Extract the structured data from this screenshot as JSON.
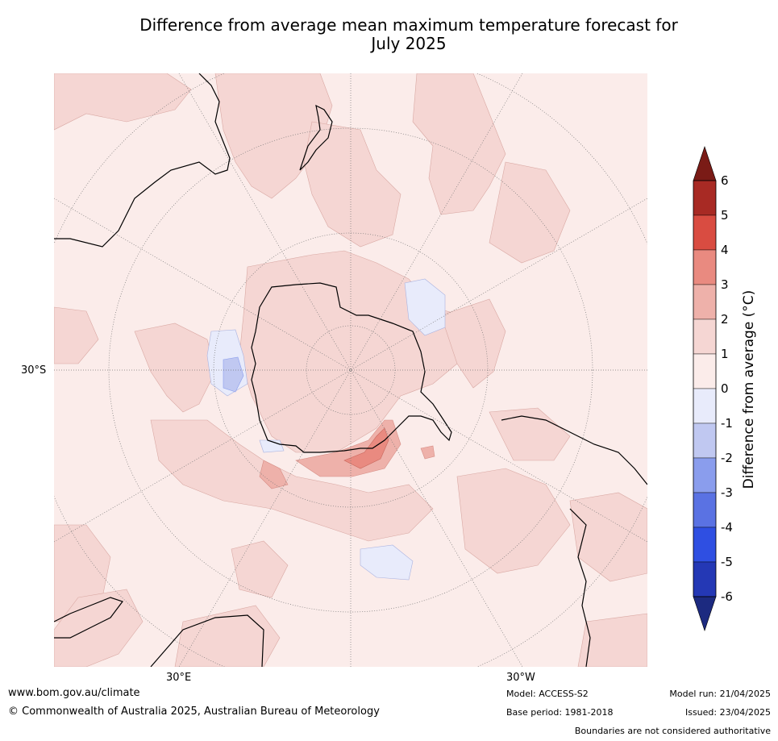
{
  "title_line1": "Difference from average mean maximum temperature forecast for",
  "title_line2": "July 2025",
  "map": {
    "lat_label": "30°S",
    "lon_label_left": "30°E",
    "lon_label_right": "30°W",
    "background_color": "#fbecea"
  },
  "colorbar": {
    "label": "Difference from average (°C)",
    "ticks": [
      "6",
      "5",
      "4",
      "3",
      "2",
      "1",
      "0",
      "-1",
      "-2",
      "-3",
      "-4",
      "-5",
      "-6"
    ],
    "colors_top_to_bottom": [
      "#a82a24",
      "#d94c41",
      "#e98a80",
      "#eeb1aa",
      "#f5d6d3",
      "#fbecea",
      "#e8ebfb",
      "#c0c8f1",
      "#8a9ded",
      "#5a72e3",
      "#2f4fe2",
      "#2438b5"
    ],
    "extend_max_color": "#7a1b16",
    "extend_min_color": "#1c2a80"
  },
  "footer": {
    "website": "www.bom.gov.au/climate",
    "copyright": "© Commonwealth of Australia 2025, Australian Bureau of Meteorology",
    "model": "Model: ACCESS-S2",
    "base_period": "Base period: 1981-2018",
    "model_run": "Model run: 21/04/2025",
    "issued": "Issued: 23/04/2025",
    "disclaimer": "Boundaries are not considered authoritative"
  }
}
